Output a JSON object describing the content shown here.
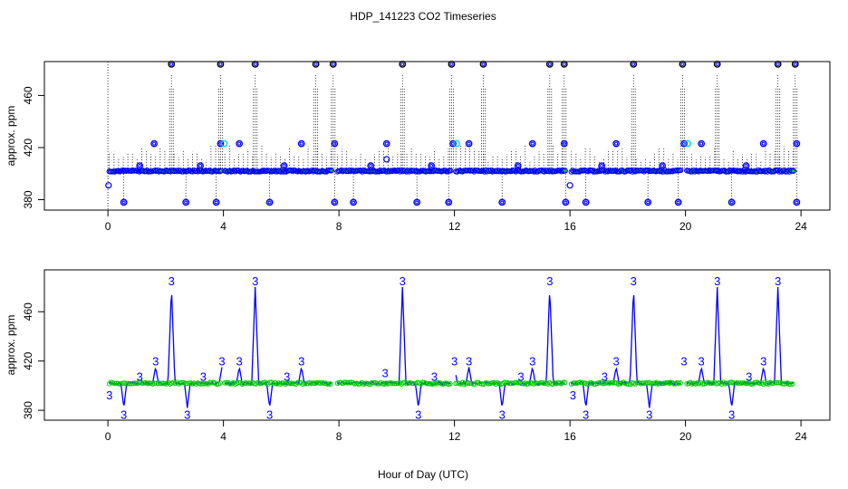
{
  "chart_data": [
    {
      "type": "scatter",
      "title": "HDP_141223  CO2 Timeseries",
      "xlabel": "",
      "ylabel": "approx. ppm",
      "xlim": [
        -2.2,
        25
      ],
      "ylim": [
        372,
        486
      ],
      "xticks": [
        "0",
        "4",
        "8",
        "12",
        "16",
        "20",
        "24"
      ],
      "yticks": [
        "380",
        "420",
        "460"
      ],
      "baseline": 402,
      "segments": [
        {
          "start": 0.05,
          "end": 3.95
        },
        {
          "start": 4.05,
          "end": 7.75
        },
        {
          "start": 7.95,
          "end": 11.9
        },
        {
          "start": 12.05,
          "end": 15.85
        },
        {
          "start": 16.05,
          "end": 19.85
        },
        {
          "start": 20.05,
          "end": 23.75
        }
      ],
      "spikes": [
        {
          "x": 2.2,
          "y": 484
        },
        {
          "x": 3.9,
          "y": 484
        },
        {
          "x": 5.1,
          "y": 484
        },
        {
          "x": 7.2,
          "y": 484
        },
        {
          "x": 7.8,
          "y": 484
        },
        {
          "x": 10.2,
          "y": 484
        },
        {
          "x": 11.9,
          "y": 484
        },
        {
          "x": 13.0,
          "y": 484
        },
        {
          "x": 15.3,
          "y": 484
        },
        {
          "x": 15.8,
          "y": 484
        },
        {
          "x": 18.2,
          "y": 484
        },
        {
          "x": 19.9,
          "y": 484
        },
        {
          "x": 21.1,
          "y": 484
        },
        {
          "x": 23.2,
          "y": 484
        },
        {
          "x": 23.8,
          "y": 484
        }
      ],
      "highs": [
        {
          "x": 1.6,
          "y": 423
        },
        {
          "x": 3.9,
          "y": 423
        },
        {
          "x": 4.55,
          "y": 423
        },
        {
          "x": 6.7,
          "y": 423
        },
        {
          "x": 7.85,
          "y": 423
        },
        {
          "x": 9.65,
          "y": 423
        },
        {
          "x": 11.95,
          "y": 423
        },
        {
          "x": 12.5,
          "y": 423
        },
        {
          "x": 14.7,
          "y": 423
        },
        {
          "x": 15.8,
          "y": 423
        },
        {
          "x": 17.6,
          "y": 423
        },
        {
          "x": 19.95,
          "y": 423
        },
        {
          "x": 20.55,
          "y": 423
        },
        {
          "x": 22.7,
          "y": 423
        },
        {
          "x": 23.85,
          "y": 423
        }
      ],
      "lows": [
        {
          "x": 0.55,
          "y": 378
        },
        {
          "x": 2.7,
          "y": 378
        },
        {
          "x": 3.75,
          "y": 378
        },
        {
          "x": 5.6,
          "y": 378
        },
        {
          "x": 7.85,
          "y": 378
        },
        {
          "x": 8.5,
          "y": 378
        },
        {
          "x": 10.7,
          "y": 378
        },
        {
          "x": 11.8,
          "y": 378
        },
        {
          "x": 13.65,
          "y": 378
        },
        {
          "x": 15.85,
          "y": 378
        },
        {
          "x": 16.55,
          "y": 378
        },
        {
          "x": 18.7,
          "y": 378
        },
        {
          "x": 19.75,
          "y": 378
        },
        {
          "x": 21.6,
          "y": 378
        },
        {
          "x": 23.85,
          "y": 378
        }
      ],
      "mids": [
        {
          "x": 1.1,
          "y": 406
        },
        {
          "x": 3.2,
          "y": 406
        },
        {
          "x": 6.1,
          "y": 406
        },
        {
          "x": 9.1,
          "y": 406
        },
        {
          "x": 11.2,
          "y": 406
        },
        {
          "x": 14.2,
          "y": 406
        },
        {
          "x": 17.1,
          "y": 406
        },
        {
          "x": 19.2,
          "y": 406
        },
        {
          "x": 22.1,
          "y": 406
        }
      ],
      "extra_points": [
        {
          "x": 0.02,
          "y": 391
        },
        {
          "x": 9.65,
          "y": 411
        },
        {
          "x": 16.0,
          "y": 391
        }
      ],
      "series_colors": {
        "low": "#0000ff",
        "rise": "#00cc00",
        "high": "#000000",
        "cyan": "#00ccff"
      }
    },
    {
      "type": "line",
      "title": "",
      "xlabel": "Hour of Day (UTC)",
      "ylabel": "approx. ppm",
      "xlim": [
        -2.2,
        25
      ],
      "ylim": [
        372,
        494
      ],
      "xticks": [
        "0",
        "4",
        "8",
        "12",
        "16",
        "20",
        "24"
      ],
      "yticks": [
        "380",
        "420",
        "460"
      ],
      "baseline": 402,
      "point_label": "3",
      "segments": [
        {
          "start": 0.05,
          "end": 3.95
        },
        {
          "start": 4.05,
          "end": 7.75
        },
        {
          "start": 7.95,
          "end": 11.9
        },
        {
          "start": 12.05,
          "end": 15.85
        },
        {
          "start": 16.05,
          "end": 19.85
        },
        {
          "start": 20.05,
          "end": 23.75
        }
      ],
      "peaks": [
        {
          "x": 2.2,
          "y": 480
        },
        {
          "x": 5.1,
          "y": 480
        },
        {
          "x": 10.2,
          "y": 480
        },
        {
          "x": 15.3,
          "y": 480
        },
        {
          "x": 18.2,
          "y": 480
        },
        {
          "x": 21.1,
          "y": 480
        },
        {
          "x": 23.2,
          "y": 480
        }
      ],
      "small_peaks": [
        {
          "x": 1.65,
          "y": 415
        },
        {
          "x": 3.95,
          "y": 415
        },
        {
          "x": 4.55,
          "y": 415
        },
        {
          "x": 6.7,
          "y": 415
        },
        {
          "x": 12.0,
          "y": 415
        },
        {
          "x": 12.5,
          "y": 415
        },
        {
          "x": 14.7,
          "y": 415
        },
        {
          "x": 17.6,
          "y": 415
        },
        {
          "x": 19.95,
          "y": 415
        },
        {
          "x": 20.55,
          "y": 415
        },
        {
          "x": 22.7,
          "y": 415
        }
      ],
      "dips": [
        {
          "x": 0.55,
          "y": 382
        },
        {
          "x": 2.75,
          "y": 382
        },
        {
          "x": 5.6,
          "y": 382
        },
        {
          "x": 10.75,
          "y": 382
        },
        {
          "x": 13.65,
          "y": 382
        },
        {
          "x": 16.55,
          "y": 382
        },
        {
          "x": 18.75,
          "y": 382
        },
        {
          "x": 21.6,
          "y": 382
        }
      ],
      "minor_labels": [
        {
          "x": 0.05,
          "y": 392
        },
        {
          "x": 1.1,
          "y": 407
        },
        {
          "x": 3.3,
          "y": 407
        },
        {
          "x": 6.2,
          "y": 407
        },
        {
          "x": 9.6,
          "y": 410
        },
        {
          "x": 11.3,
          "y": 407
        },
        {
          "x": 14.3,
          "y": 407
        },
        {
          "x": 16.1,
          "y": 392
        },
        {
          "x": 17.2,
          "y": 407
        },
        {
          "x": 22.2,
          "y": 407
        }
      ],
      "series_colors": {
        "line": "#0000ff",
        "point": "#00cc00"
      }
    }
  ]
}
